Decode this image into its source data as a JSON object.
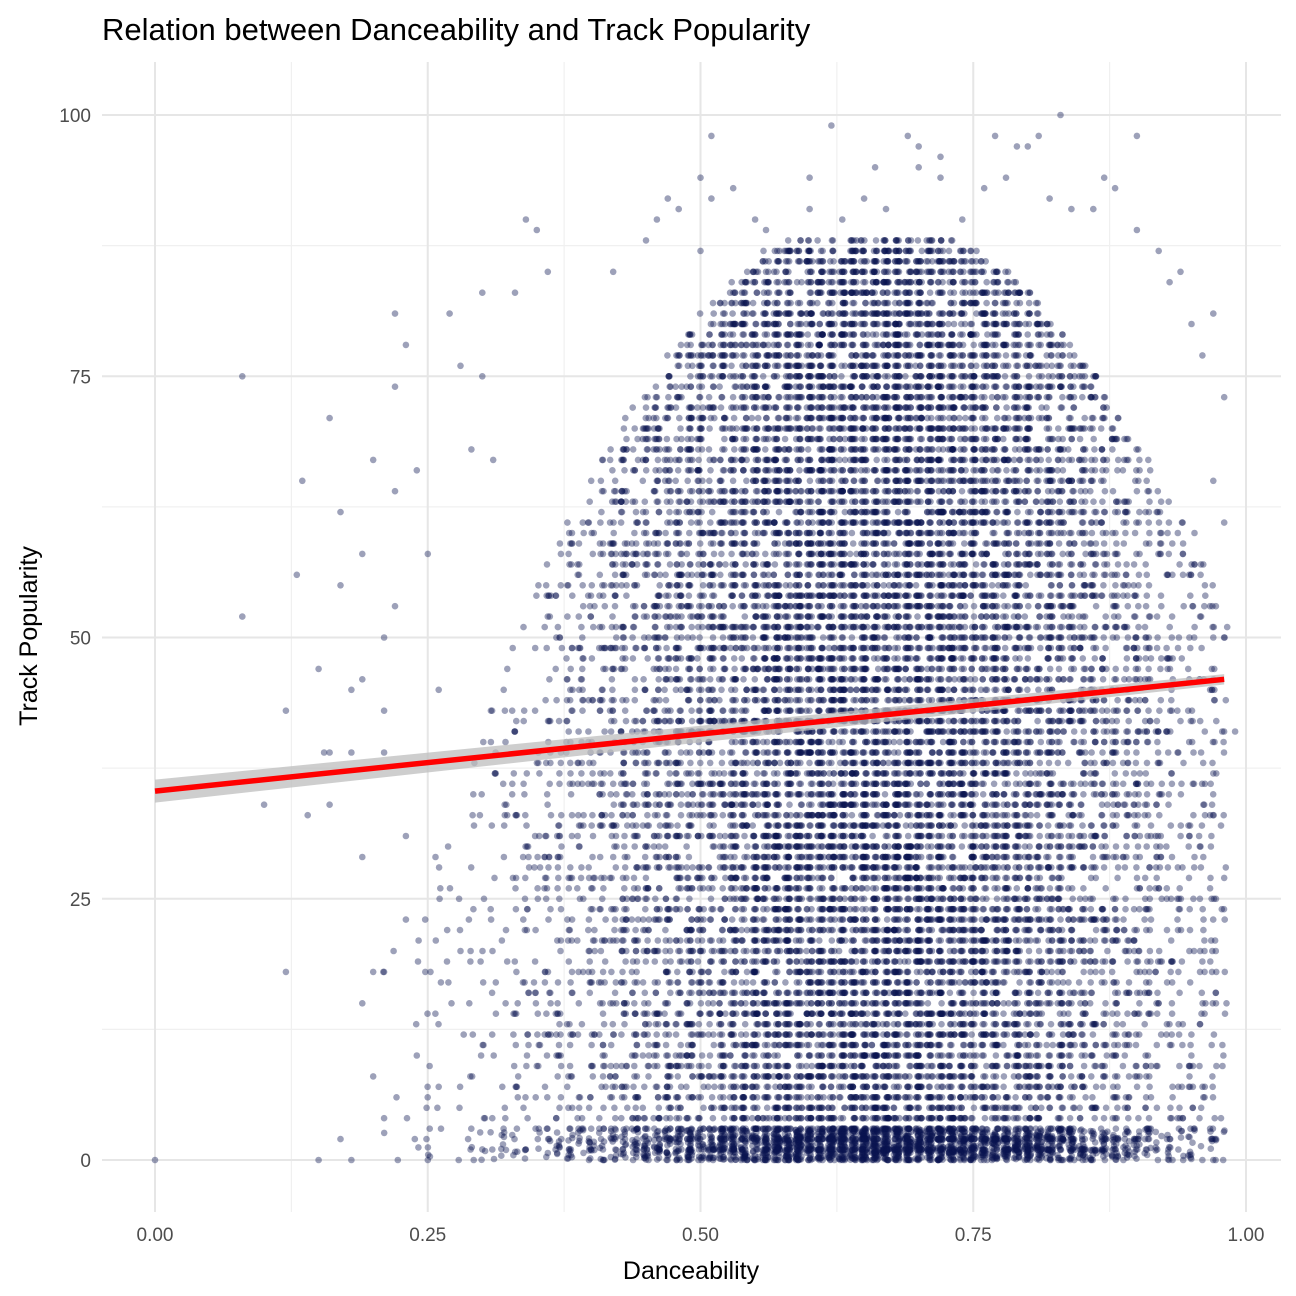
{
  "chart_data": {
    "type": "scatter",
    "title": "Relation between Danceability and Track Popularity",
    "xlabel": "Danceability",
    "ylabel": "Track Popularity",
    "xlim": [
      -0.05,
      1.04
    ],
    "ylim": [
      -5,
      104
    ],
    "x_ticks": [
      0.0,
      0.25,
      0.5,
      0.75,
      1.0
    ],
    "x_tick_labels": [
      "0.00",
      "0.25",
      "0.50",
      "0.75",
      "1.00"
    ],
    "y_ticks": [
      0,
      25,
      50,
      75,
      100
    ],
    "y_tick_labels": [
      "0",
      "25",
      "50",
      "75",
      "100"
    ],
    "grid": true,
    "legend": "none",
    "colors": {
      "points": "#0a1450",
      "trend": "#ff0000",
      "band": "#bdbdbd"
    },
    "points_alpha": 0.4,
    "series": [
      {
        "kind": "points",
        "points": [
          [
            0.0,
            0
          ],
          [
            0.08,
            75
          ],
          [
            0.08,
            52
          ],
          [
            0.1,
            34
          ],
          [
            0.12,
            43
          ],
          [
            0.12,
            18
          ],
          [
            0.13,
            56
          ],
          [
            0.135,
            65
          ],
          [
            0.14,
            33
          ],
          [
            0.15,
            0
          ],
          [
            0.15,
            47
          ],
          [
            0.155,
            39
          ],
          [
            0.16,
            34
          ],
          [
            0.16,
            71
          ],
          [
            0.16,
            39
          ],
          [
            0.17,
            62
          ],
          [
            0.17,
            55
          ],
          [
            0.17,
            2
          ],
          [
            0.18,
            45
          ],
          [
            0.18,
            39
          ],
          [
            0.18,
            0
          ],
          [
            0.19,
            58
          ],
          [
            0.19,
            46
          ],
          [
            0.19,
            29
          ],
          [
            0.19,
            15
          ],
          [
            0.2,
            67
          ],
          [
            0.2,
            18
          ],
          [
            0.2,
            8
          ],
          [
            0.21,
            4
          ],
          [
            0.21,
            43
          ],
          [
            0.21,
            50
          ],
          [
            0.21,
            39
          ],
          [
            0.22,
            81
          ],
          [
            0.22,
            74
          ],
          [
            0.22,
            64
          ],
          [
            0.22,
            53
          ],
          [
            0.23,
            78
          ],
          [
            0.23,
            31
          ],
          [
            0.23,
            23
          ],
          [
            0.24,
            66
          ],
          [
            0.24,
            10
          ],
          [
            0.25,
            0
          ],
          [
            0.25,
            58
          ],
          [
            0.26,
            45
          ],
          [
            0.26,
            7
          ],
          [
            0.27,
            81
          ],
          [
            0.28,
            76
          ],
          [
            0.28,
            20
          ],
          [
            0.29,
            68
          ],
          [
            0.3,
            83
          ],
          [
            0.3,
            75
          ],
          [
            0.31,
            67
          ],
          [
            0.33,
            83
          ],
          [
            0.34,
            90
          ],
          [
            0.35,
            89
          ],
          [
            0.36,
            85
          ],
          [
            0.42,
            85
          ],
          [
            0.45,
            88
          ],
          [
            0.46,
            90
          ],
          [
            0.47,
            92
          ],
          [
            0.48,
            91
          ],
          [
            0.5,
            94
          ],
          [
            0.5,
            87
          ],
          [
            0.51,
            98
          ],
          [
            0.51,
            92
          ],
          [
            0.53,
            93
          ],
          [
            0.55,
            90
          ],
          [
            0.56,
            89
          ],
          [
            0.6,
            94
          ],
          [
            0.6,
            91
          ],
          [
            0.62,
            99
          ],
          [
            0.63,
            90
          ],
          [
            0.65,
            92
          ],
          [
            0.66,
            95
          ],
          [
            0.67,
            91
          ],
          [
            0.69,
            98
          ],
          [
            0.7,
            97
          ],
          [
            0.7,
            95
          ],
          [
            0.72,
            96
          ],
          [
            0.72,
            94
          ],
          [
            0.74,
            90
          ],
          [
            0.76,
            93
          ],
          [
            0.77,
            98
          ],
          [
            0.78,
            94
          ],
          [
            0.79,
            97
          ],
          [
            0.8,
            97
          ],
          [
            0.81,
            98
          ],
          [
            0.82,
            92
          ],
          [
            0.83,
            100
          ],
          [
            0.84,
            91
          ],
          [
            0.86,
            91
          ],
          [
            0.87,
            94
          ],
          [
            0.88,
            93
          ],
          [
            0.9,
            98
          ],
          [
            0.9,
            89
          ],
          [
            0.92,
            87
          ],
          [
            0.93,
            84
          ],
          [
            0.94,
            85
          ],
          [
            0.95,
            80
          ],
          [
            0.96,
            77
          ],
          [
            0.97,
            81
          ],
          [
            0.97,
            65
          ],
          [
            0.97,
            50
          ],
          [
            0.98,
            73
          ],
          [
            0.98,
            61
          ],
          [
            0.98,
            27
          ],
          [
            0.99,
            41
          ],
          [
            0.96,
            0
          ],
          [
            0.97,
            0
          ]
        ],
        "bulk": {
          "description": "dense point cloud",
          "x_center": 0.66,
          "x_sd": 0.14,
          "x_range": [
            0.2,
            0.98
          ],
          "y_range": [
            0,
            88
          ],
          "n": 18000
        }
      },
      {
        "kind": "trend",
        "name": "",
        "method": "lm",
        "x": [
          0.0,
          0.98
        ],
        "y": [
          35.3,
          46.0
        ],
        "band_halfwidth": [
          1.1,
          0.5
        ]
      }
    ]
  }
}
